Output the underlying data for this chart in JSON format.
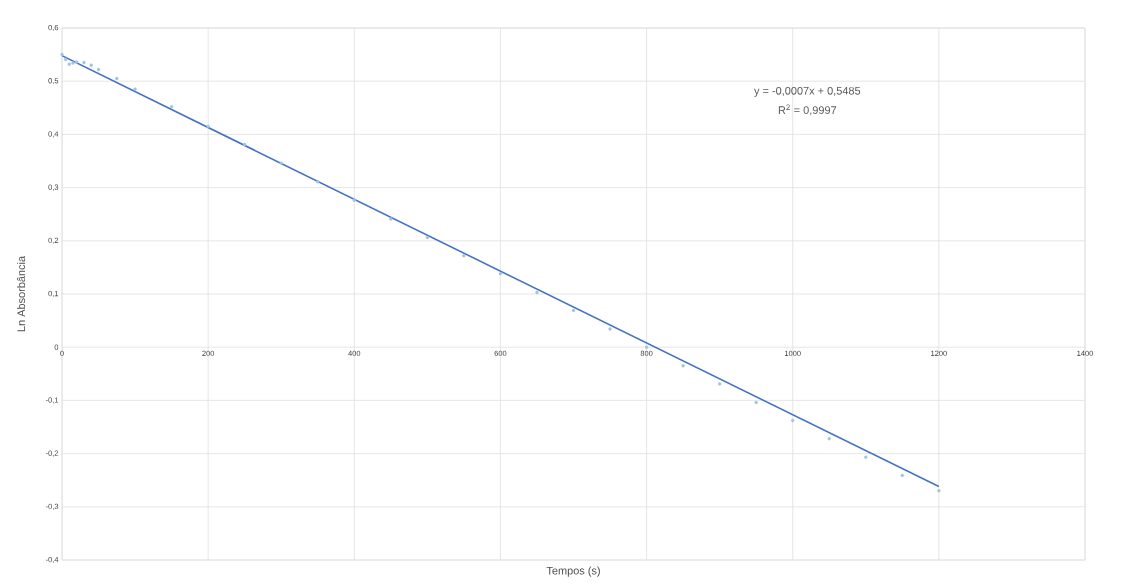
{
  "chart_data": {
    "type": "scatter",
    "xlabel": "Tempos (s)",
    "ylabel": "Ln Absorbância",
    "annotations": [
      "y = -0,0007x + 0,5485",
      "R$^{2}$ = 0,9997"
    ],
    "series": [
      {
        "color": "#9dc3e6",
        "x": [
          0,
          5,
          10,
          15,
          20,
          30,
          40,
          50,
          75,
          100,
          150,
          200,
          250,
          300,
          350,
          400,
          450,
          500,
          550,
          600,
          650,
          700,
          750,
          800,
          850,
          900,
          950,
          1000,
          1050,
          1100,
          1150,
          1200
        ],
        "values": [
          0.55,
          0.541,
          0.532,
          0.534,
          0.536,
          0.535,
          0.53,
          0.522,
          0.505,
          0.485,
          0.452,
          0.415,
          0.381,
          0.346,
          0.311,
          0.276,
          0.241,
          0.206,
          0.172,
          0.138,
          0.103,
          0.069,
          0.034,
          0.0,
          -0.035,
          -0.069,
          -0.104,
          -0.138,
          -0.172,
          -0.207,
          -0.241,
          -0.27
        ]
      },
      {
        "type": "line",
        "color": "#4472c4",
        "line_style": "solid",
        "x": [
          0,
          1200
        ],
        "values": [
          0.548,
          -0.262
        ]
      }
    ],
    "xlim": [
      0,
      1400
    ],
    "xticks": [
      0,
      200,
      400,
      600,
      800,
      1000,
      1200,
      1400
    ],
    "ylim": [
      -0.4,
      0.6
    ],
    "yticks": [
      {
        "value": -0.4,
        "label": "-0,4"
      },
      {
        "value": -0.3,
        "label": "-0,3"
      },
      {
        "value": -0.2,
        "label": "-0,2"
      },
      {
        "value": -0.1,
        "label": "-0,1"
      },
      {
        "value": 0,
        "label": "0"
      },
      {
        "value": 0.1,
        "label": "0,1"
      },
      {
        "value": 0.2,
        "label": "0,2"
      },
      {
        "value": 0.3,
        "label": "0,3"
      },
      {
        "value": 0.4,
        "label": "0,4"
      },
      {
        "value": 0.5,
        "label": "0,5"
      },
      {
        "value": 0.6,
        "label": "0,6"
      }
    ],
    "grid": true
  }
}
